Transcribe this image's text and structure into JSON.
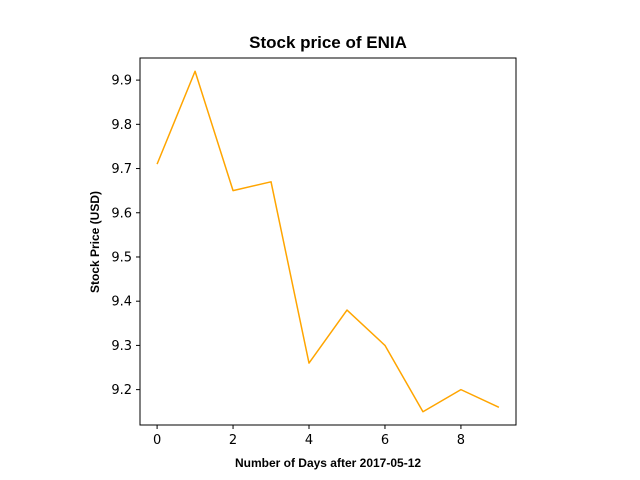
{
  "chart_data": {
    "type": "line",
    "title": "Stock price of ENIA",
    "xlabel": "Number of Days after 2017-05-12",
    "ylabel": "Stock Price (USD)",
    "x": [
      0,
      1,
      2,
      3,
      4,
      5,
      6,
      7,
      8,
      9
    ],
    "series": [
      {
        "values": [
          9.71,
          9.92,
          9.65,
          9.67,
          9.26,
          9.38,
          9.3,
          9.15,
          9.2,
          9.16
        ],
        "color": "#ffa500"
      }
    ],
    "xlim": [
      -0.45,
      9.45
    ],
    "ylim": [
      9.12,
      9.95
    ],
    "xticks": [
      0,
      2,
      4,
      6,
      8
    ],
    "xtick_labels": [
      "0",
      "2",
      "4",
      "6",
      "8"
    ],
    "yticks": [
      9.2,
      9.3,
      9.4,
      9.5,
      9.6,
      9.7,
      9.8,
      9.9
    ],
    "ytick_labels": [
      "9.2",
      "9.3",
      "9.4",
      "9.5",
      "9.6",
      "9.7",
      "9.8",
      "9.9"
    ],
    "grid": false,
    "legend": "none"
  }
}
